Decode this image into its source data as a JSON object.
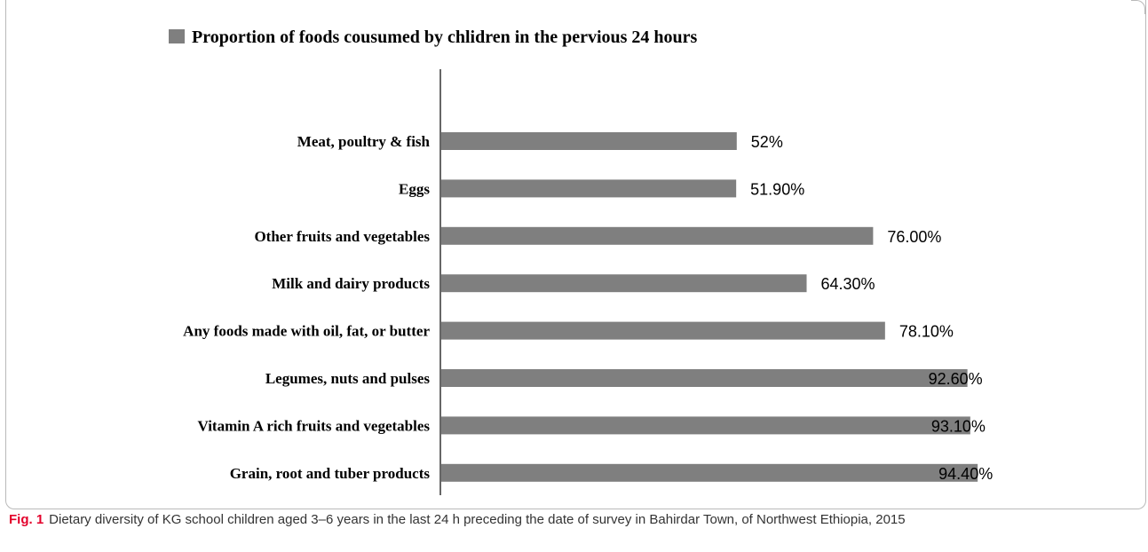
{
  "chart_data": {
    "type": "bar",
    "orientation": "horizontal",
    "categories": [
      "Meat, poultry & fish",
      "Eggs",
      "Other fruits and vegetables",
      "Milk and dairy products",
      "Any foods made with oil, fat, or butter",
      "Legumes, nuts and pulses",
      "Vitamin A rich fruits and vegetables",
      "Grain, root and tuber products"
    ],
    "series": [
      {
        "name": "Proportion of  foods cousumed by chlidren in the pervious 24 hours",
        "values": [
          52,
          51.9,
          76.0,
          64.3,
          78.1,
          92.6,
          93.1,
          94.4
        ],
        "labels": [
          "52%",
          "51.90%",
          "76.00%",
          "64.30%",
          "78.10%",
          "92.60%",
          "93.10%",
          "94.40%"
        ],
        "color": "#7f7f7f"
      }
    ],
    "xlim": [
      0,
      100
    ],
    "legend_position": "top-left",
    "grid": false,
    "bar_color": "#7f7f7f"
  },
  "caption": {
    "label": "Fig. 1",
    "text": "Dietary diversity of KG school children aged 3–6 years in the last 24 h preceding the date of survey in Bahirdar Town, of Northwest Ethiopia, 2015"
  }
}
